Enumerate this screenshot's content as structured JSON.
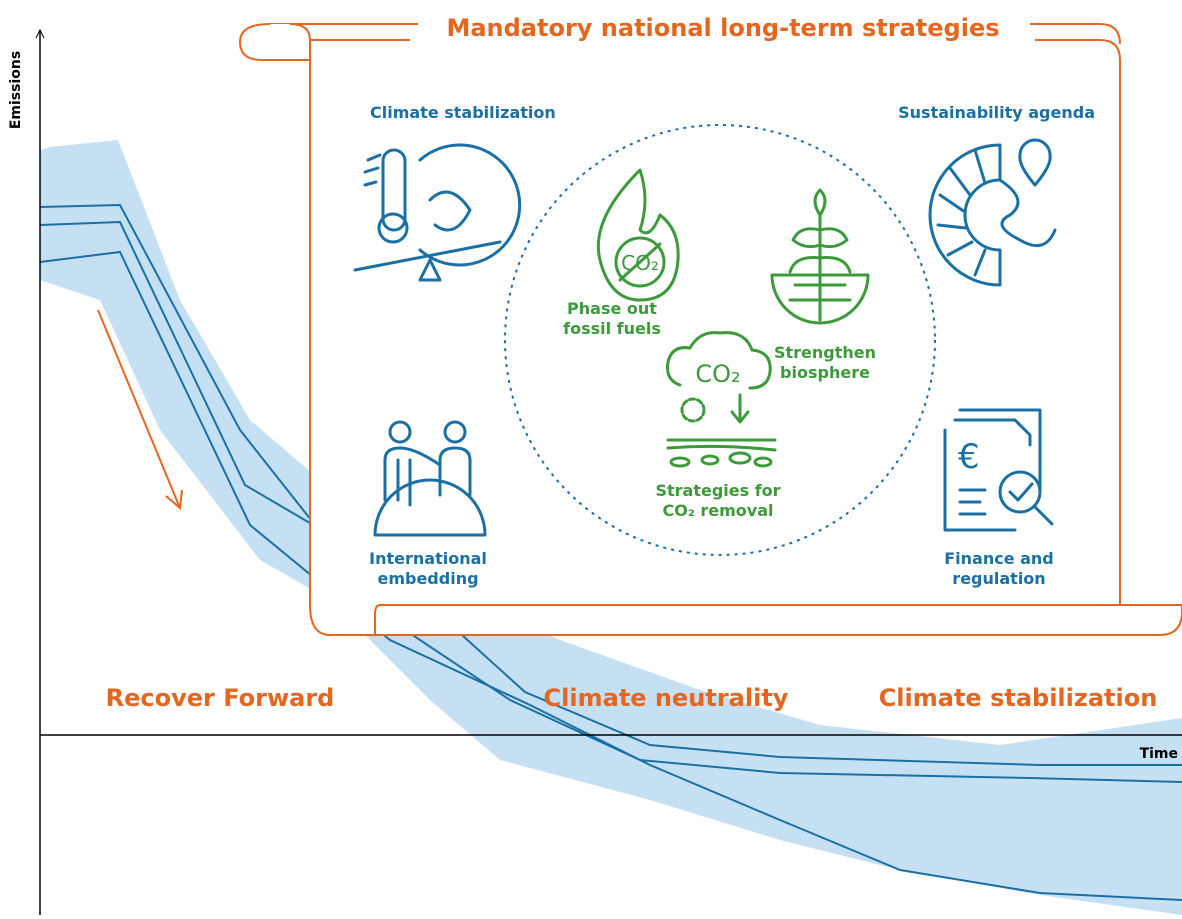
{
  "axes": {
    "y_label": "Emissions",
    "x_label": "Time"
  },
  "frame": {
    "title": "Mandatory national long-term strategies"
  },
  "corners": {
    "top_left": [
      "Climate stabilization"
    ],
    "top_right": [
      "Sustainability agenda"
    ],
    "bottom_left": [
      "International",
      "embedding"
    ],
    "bottom_right": [
      "Finance and",
      "regulation"
    ]
  },
  "center": {
    "fossil": [
      "Phase out",
      "fossil fuels"
    ],
    "biosphere": [
      "Strengthen",
      "biosphere"
    ],
    "removal": [
      "Strategies for",
      "CO₂ removal"
    ],
    "cloud_label": "CO₂",
    "flame_label": "CO₂"
  },
  "phases": [
    "Recover Forward",
    "Climate neutrality",
    "Climate stabilization"
  ]
}
